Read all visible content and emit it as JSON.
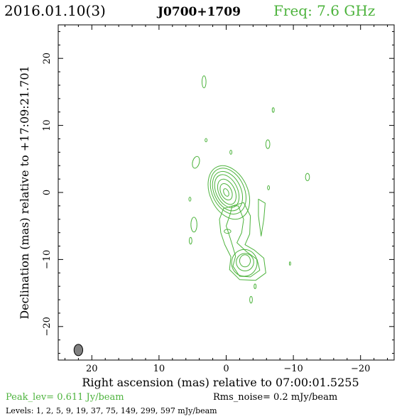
{
  "header": {
    "date_label": "2016.01.10(3)",
    "source_label": "J0700+1709",
    "freq_label": "Freq: 7.6 GHz"
  },
  "footer": {
    "peak_label": "Peak_lev=  0.611 Jy/beam",
    "rms_label": "Rms_noise=  0.2 mJy/beam",
    "levels_label": "Levels:    1,    2,    5,    9,   19,   37,   75,  149,  299,  597  mJy/beam"
  },
  "colors": {
    "contour": "#4db33d",
    "accent_text": "#4db33d",
    "beam_fill": "#808080",
    "axis": "#000000"
  },
  "chart_data": {
    "type": "contour",
    "xlabel": "Right ascension (mas) relative to 07:00:01.5255",
    "ylabel": "Declination (mas) relative to +17:09:21.701",
    "xlim": [
      25,
      -25
    ],
    "ylim": [
      -25,
      25
    ],
    "x_ticks": [
      20,
      10,
      0,
      -10,
      -20
    ],
    "x_tick_labels": [
      "20",
      "10",
      "0",
      "−10",
      "−20"
    ],
    "y_ticks": [
      20,
      10,
      0,
      -10,
      -20
    ],
    "y_tick_labels": [
      "20",
      "10",
      "0",
      "−10",
      "−20"
    ],
    "contour_levels_mJy": [
      1,
      2,
      5,
      9,
      19,
      37,
      75,
      149,
      299,
      597
    ],
    "peak_Jy_per_beam": 0.611,
    "rms_mJy_per_beam": 0.2,
    "beam": {
      "ra": 22,
      "dec": -23.5,
      "major": 1.7,
      "minor": 1.3,
      "pa_deg": 0
    },
    "core": {
      "ra": 0,
      "dec": 0
    },
    "core_contours": [
      {
        "ra": 0.0,
        "dec": 0.0,
        "a": 0.35,
        "b": 0.6,
        "rot": -25
      },
      {
        "ra": 0.0,
        "dec": 0.1,
        "a": 0.8,
        "b": 1.3,
        "rot": -25
      },
      {
        "ra": -0.1,
        "dec": 0.1,
        "a": 1.2,
        "b": 2.0,
        "rot": -25
      },
      {
        "ra": -0.1,
        "dec": 0.2,
        "a": 1.6,
        "b": 2.6,
        "rot": -25
      },
      {
        "ra": -0.2,
        "dec": 0.2,
        "a": 2.0,
        "b": 3.1,
        "rot": -25
      },
      {
        "ra": -0.3,
        "dec": 0.2,
        "a": 2.4,
        "b": 3.6,
        "rot": -25
      },
      {
        "ra": -0.4,
        "dec": 0.0,
        "a": 2.8,
        "b": 4.2,
        "rot": -25
      }
    ],
    "knot_contours": [
      {
        "ra": -2.8,
        "dec": -10.2,
        "a": 0.8,
        "b": 0.9,
        "rot": 0
      },
      {
        "ra": -2.8,
        "dec": -10.4,
        "a": 1.3,
        "b": 1.3,
        "rot": 0
      },
      {
        "ra": -2.7,
        "dec": -10.5,
        "a": 1.9,
        "b": 2.0,
        "rot": 0
      }
    ],
    "jet_outlines": [
      [
        [
          -1.8,
          -2.0
        ],
        [
          -2.6,
          -4.0
        ],
        [
          -2.3,
          -6.0
        ],
        [
          -1.6,
          -7.5
        ],
        [
          -3.0,
          -8.8
        ],
        [
          -4.6,
          -10.0
        ],
        [
          -5.0,
          -11.6
        ],
        [
          -3.6,
          -12.6
        ],
        [
          -2.0,
          -12.5
        ],
        [
          -1.0,
          -11.0
        ],
        [
          -1.4,
          -9.5
        ],
        [
          -0.9,
          -7.8
        ],
        [
          -0.4,
          -6.2
        ],
        [
          0.0,
          -5.0
        ],
        [
          -0.6,
          -3.2
        ],
        [
          -0.9,
          -2.0
        ]
      ],
      [
        [
          -2.6,
          -1.5
        ],
        [
          -3.6,
          -3.5
        ],
        [
          -3.5,
          -6.2
        ],
        [
          -2.8,
          -7.8
        ],
        [
          -4.2,
          -8.6
        ],
        [
          -5.6,
          -9.8
        ],
        [
          -5.9,
          -12.0
        ],
        [
          -4.4,
          -13.1
        ],
        [
          -2.0,
          -13.0
        ],
        [
          -0.5,
          -11.5
        ],
        [
          -0.7,
          -9.6
        ],
        [
          0.2,
          -7.8
        ],
        [
          0.8,
          -6.0
        ],
        [
          1.0,
          -4.0
        ],
        [
          0.4,
          -2.4
        ]
      ],
      [
        [
          -4.8,
          -1.0
        ],
        [
          -4.8,
          -3.5
        ],
        [
          -5.2,
          -6.5
        ],
        [
          -5.6,
          -4.0
        ],
        [
          -5.8,
          -1.6
        ]
      ]
    ],
    "islands": [
      {
        "ra": 3.3,
        "dec": 16.5,
        "a": 0.3,
        "b": 0.9,
        "rot": 0
      },
      {
        "ra": -7.0,
        "dec": 12.3,
        "a": 0.15,
        "b": 0.35,
        "rot": 0
      },
      {
        "ra": 3.0,
        "dec": 7.8,
        "a": 0.15,
        "b": 0.25,
        "rot": 0
      },
      {
        "ra": -0.7,
        "dec": 6.0,
        "a": 0.15,
        "b": 0.3,
        "rot": 0
      },
      {
        "ra": -6.2,
        "dec": 7.2,
        "a": 0.3,
        "b": 0.65,
        "rot": 0
      },
      {
        "ra": 4.5,
        "dec": 4.5,
        "a": 0.5,
        "b": 0.9,
        "rot": 15
      },
      {
        "ra": -12.1,
        "dec": 2.3,
        "a": 0.3,
        "b": 0.55,
        "rot": 0
      },
      {
        "ra": -6.3,
        "dec": 0.7,
        "a": 0.15,
        "b": 0.3,
        "rot": 0
      },
      {
        "ra": 5.4,
        "dec": -1.0,
        "a": 0.15,
        "b": 0.3,
        "rot": 0
      },
      {
        "ra": 4.8,
        "dec": -4.8,
        "a": 0.45,
        "b": 1.1,
        "rot": 0
      },
      {
        "ra": 5.3,
        "dec": -7.2,
        "a": 0.2,
        "b": 0.5,
        "rot": 0
      },
      {
        "ra": -0.2,
        "dec": -5.8,
        "a": 0.5,
        "b": 0.3,
        "rot": 0
      },
      {
        "ra": -9.5,
        "dec": -10.6,
        "a": 0.1,
        "b": 0.25,
        "rot": 0
      },
      {
        "ra": -4.3,
        "dec": -14.0,
        "a": 0.15,
        "b": 0.35,
        "rot": 0
      },
      {
        "ra": -3.7,
        "dec": -16.0,
        "a": 0.2,
        "b": 0.5,
        "rot": 0
      }
    ]
  }
}
